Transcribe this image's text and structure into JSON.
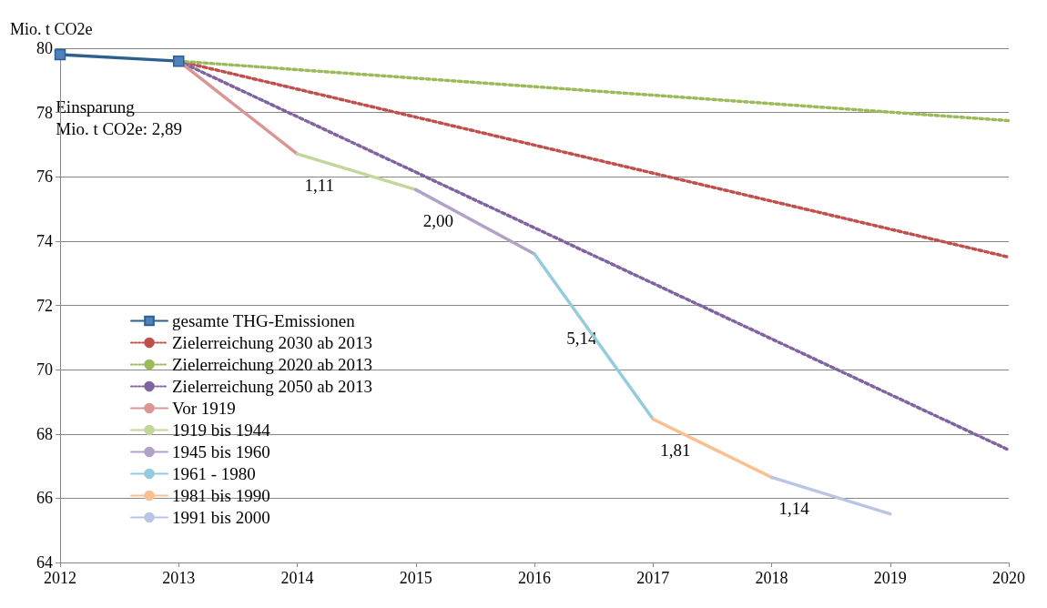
{
  "chart_data": {
    "type": "line",
    "ylabel": "Mio. t CO2e",
    "xlim": [
      2012,
      2020
    ],
    "xticks": [
      2012,
      2013,
      2014,
      2015,
      2016,
      2017,
      2018,
      2019,
      2020
    ],
    "ylim": [
      64,
      80
    ],
    "yticks": [
      64,
      66,
      68,
      70,
      72,
      74,
      76,
      78,
      80
    ],
    "grid": "y",
    "legend": "bottom left",
    "series": [
      {
        "name": "gesamte THG-Emissionen",
        "color": "#2e5f91",
        "x": [
          2012,
          2013
        ],
        "values": [
          79.8,
          79.6
        ],
        "marker": "square",
        "line_style": "solid"
      },
      {
        "name": "Zielerreichung 2030 ab 2013",
        "color": "#c0504d",
        "x": [
          2013,
          2020
        ],
        "values": [
          79.6,
          73.5
        ],
        "marker": "none",
        "line_style": "dotted"
      },
      {
        "name": "Zielerreichung 2020 ab 2013",
        "color": "#9bbb59",
        "x": [
          2013,
          2020
        ],
        "values": [
          79.6,
          77.75
        ],
        "marker": "none",
        "line_style": "dotted"
      },
      {
        "name": "Zielerreichung 2050 ab 2013",
        "color": "#8064a2",
        "x": [
          2013,
          2020
        ],
        "values": [
          79.6,
          67.5
        ],
        "marker": "none",
        "line_style": "dotted"
      },
      {
        "name": "Vor 1919",
        "color": "#d99694",
        "x": [
          2013,
          2014
        ],
        "values": [
          79.6,
          76.71
        ],
        "marker": "none",
        "line_style": "solid"
      },
      {
        "name": "1919 bis 1944",
        "color": "#c3d69b",
        "x": [
          2014,
          2015
        ],
        "values": [
          76.71,
          75.6
        ],
        "marker": "none",
        "line_style": "solid"
      },
      {
        "name": "1945 bis 1960",
        "color": "#b3a2c7",
        "x": [
          2015,
          2016
        ],
        "values": [
          75.6,
          73.6
        ],
        "marker": "none",
        "line_style": "solid"
      },
      {
        "name": "1961 - 1980",
        "color": "#93cddd",
        "x": [
          2016,
          2017
        ],
        "values": [
          73.6,
          68.46
        ],
        "marker": "none",
        "line_style": "solid"
      },
      {
        "name": "1981 bis 1990",
        "color": "#fac090",
        "x": [
          2017,
          2018
        ],
        "values": [
          68.46,
          66.65
        ],
        "marker": "none",
        "line_style": "solid"
      },
      {
        "name": "1991 bis 2000",
        "color": "#b9c6e3",
        "x": [
          2018,
          2019
        ],
        "values": [
          66.65,
          65.51
        ],
        "marker": "none",
        "line_style": "solid"
      }
    ],
    "annotations": [
      "Einsparung\nMio. t CO2e: 2,89",
      "1,11",
      "2,00",
      "5,14",
      "1,81",
      "1,14"
    ]
  }
}
